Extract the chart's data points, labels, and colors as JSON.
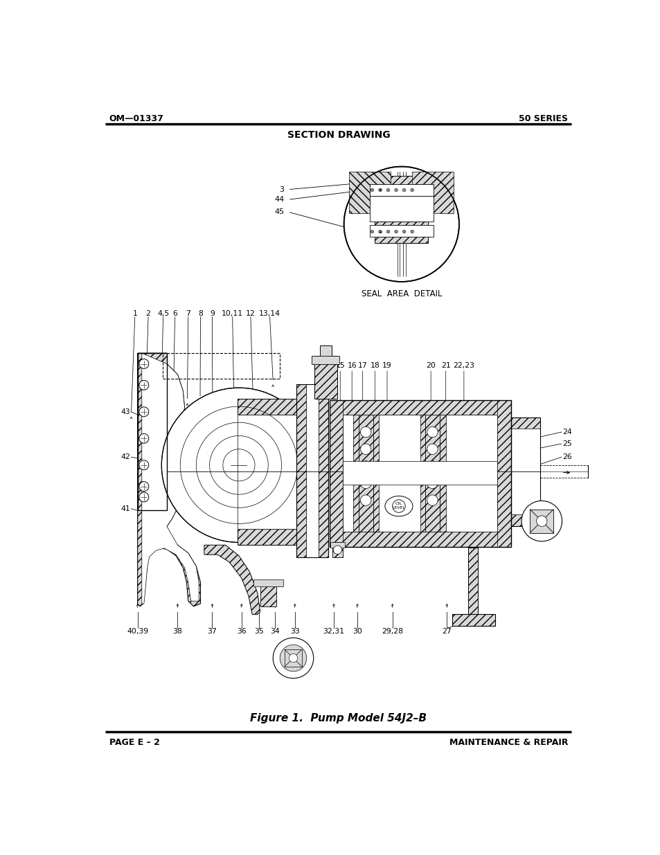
{
  "bg_color": "#ffffff",
  "header_left": "OM—01337",
  "header_right": "50 SERIES",
  "section_title": "SECTION DRAWING",
  "figure_caption": "Figure 1.  Pump Model 54J2–B",
  "footer_left": "PAGE E – 2",
  "footer_right": "MAINTENANCE & REPAIR",
  "line_color": "#000000",
  "hatch_color": "#000000",
  "light_gray": "#d8d8d8",
  "white": "#ffffff"
}
